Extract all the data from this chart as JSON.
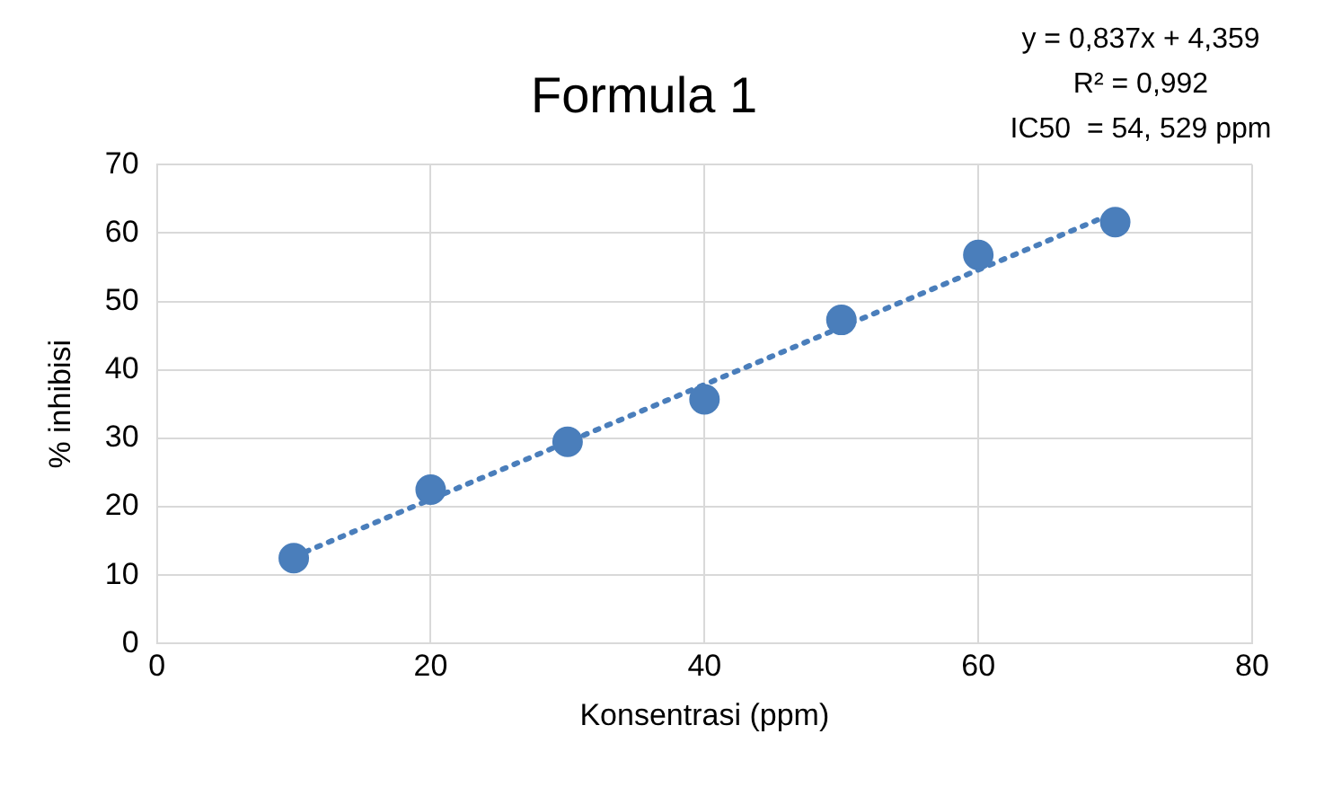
{
  "chart_data": {
    "type": "scatter",
    "title": "Formula 1",
    "xlabel": "Konsentrasi (ppm)",
    "ylabel": "% inhibisi",
    "annotations": [
      "y = 0,837x + 4,359",
      "R² = 0,992",
      "IC50  = 54, 529 ppm"
    ],
    "xlim": [
      0,
      80
    ],
    "xticks": [
      0,
      20,
      40,
      60,
      80
    ],
    "ylim": [
      0,
      70
    ],
    "yticks": [
      0,
      10,
      20,
      30,
      40,
      50,
      60,
      70
    ],
    "grid": true,
    "legend": false,
    "series": [
      {
        "color": "#4a7ebb",
        "marker": "circle",
        "x": [
          10,
          20,
          30,
          40,
          50,
          60,
          70
        ],
        "values": [
          12.5,
          22.5,
          29.5,
          35.7,
          47.3,
          56.8,
          61.6
        ]
      },
      {
        "type": "line",
        "color": "#4a7ebb",
        "marker": "none",
        "line_style": "dotted",
        "x": [
          10,
          70
        ],
        "values": [
          12.7,
          63.0
        ]
      }
    ]
  }
}
